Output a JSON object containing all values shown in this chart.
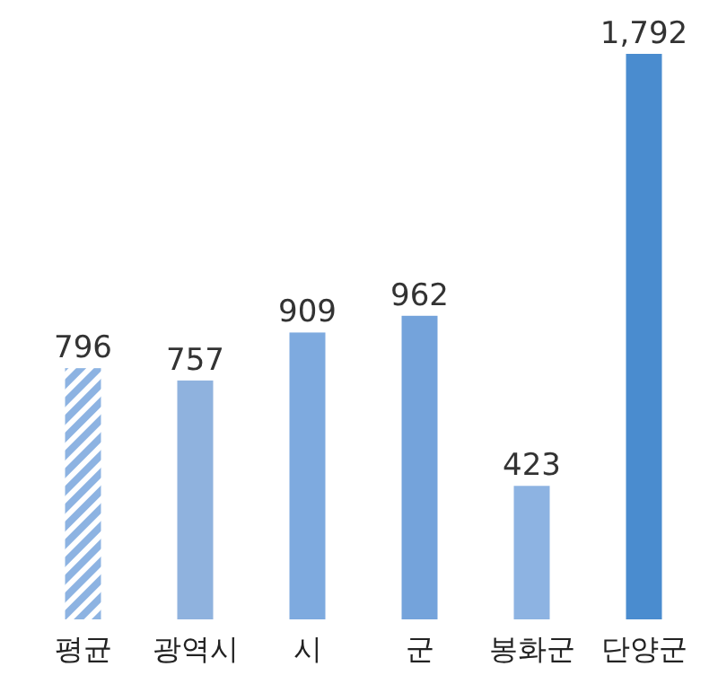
{
  "chart_data": {
    "type": "bar",
    "categories": [
      "평균",
      "광역시",
      "시",
      "군",
      "봉화군",
      "단양군"
    ],
    "values": [
      796,
      757,
      909,
      962,
      423,
      1792
    ],
    "value_labels": [
      "796",
      "757",
      "909",
      "962",
      "423",
      "1,792"
    ],
    "colors": [
      "#8db3e2",
      "#8fb2de",
      "#7eaadf",
      "#74a3db",
      "#8db3e2",
      "#4a8ccf"
    ]
  }
}
